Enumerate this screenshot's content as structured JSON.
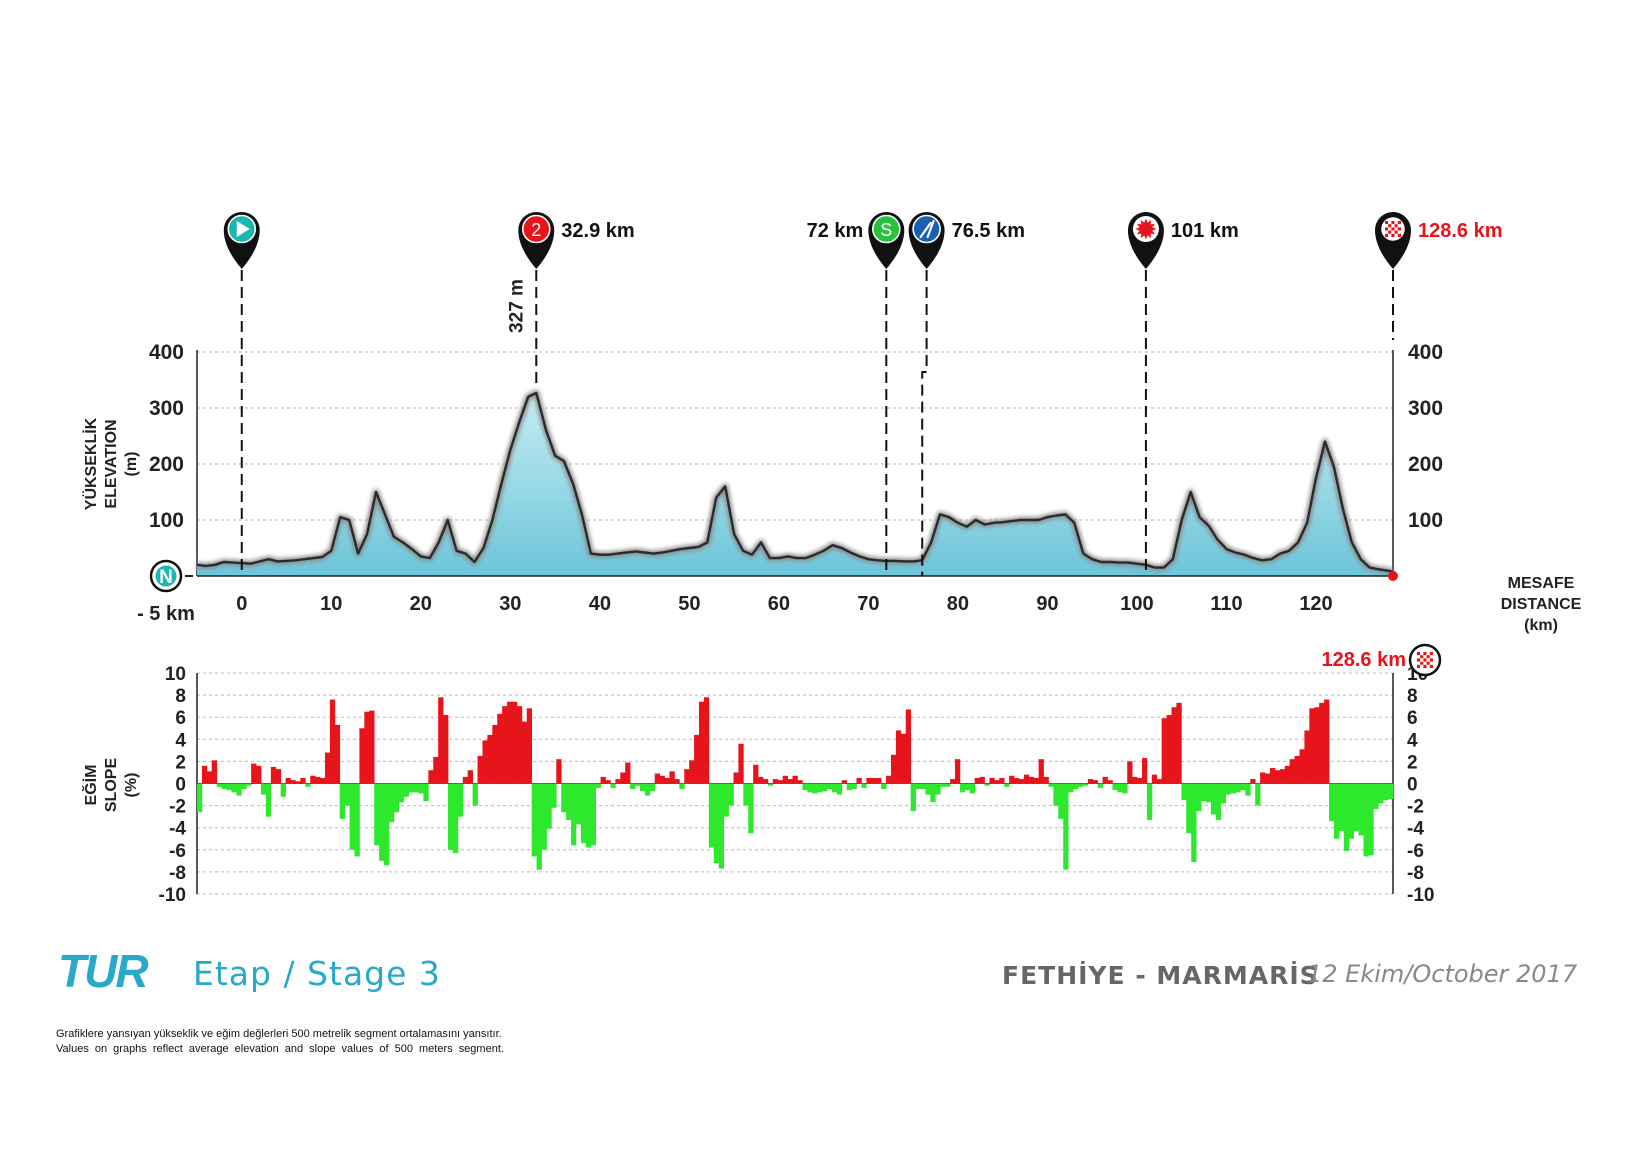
{
  "chart_data": [
    {
      "type": "area",
      "ylabel_lines": [
        "YÜKSEKLİK",
        "ELEVATION",
        "(m)"
      ],
      "xlabel_lines": [
        "MESAFE",
        "DISTANCE",
        "(km)"
      ],
      "ylim": [
        0,
        400
      ],
      "yticks": [
        100,
        200,
        300,
        400
      ],
      "xlim": [
        -5,
        128.6
      ],
      "xticks": [
        0,
        10,
        20,
        30,
        40,
        50,
        60,
        70,
        80,
        90,
        100,
        110,
        120
      ],
      "start_label": "- 5 km",
      "north_symbol": "N",
      "peak_label": "327 m",
      "grid": true,
      "series": [
        {
          "x": [
            -5,
            -4,
            -3,
            -2,
            -1,
            0,
            1,
            2,
            3,
            4,
            5,
            6,
            7,
            8,
            9,
            10,
            11,
            12,
            13,
            14,
            15,
            16,
            17,
            18,
            19,
            20,
            21,
            22,
            23,
            24,
            25,
            26,
            27,
            28,
            29,
            30,
            31,
            32,
            32.9,
            34,
            35,
            36,
            37,
            38,
            39,
            40,
            41,
            42,
            43,
            44,
            45,
            46,
            47,
            48,
            49,
            50,
            51,
            52,
            53,
            54,
            55,
            56,
            57,
            58,
            59,
            60,
            61,
            62,
            63,
            64,
            65,
            66,
            67,
            68,
            69,
            70,
            71,
            72,
            73,
            74,
            75,
            76,
            77,
            78,
            79,
            80,
            81,
            82,
            83,
            84,
            85,
            86,
            87,
            88,
            89,
            90,
            91,
            92,
            93,
            94,
            95,
            96,
            97,
            98,
            99,
            100,
            101,
            102,
            103,
            104,
            105,
            106,
            107,
            108,
            109,
            110,
            111,
            112,
            113,
            114,
            115,
            116,
            117,
            118,
            119,
            120,
            121,
            122,
            123,
            124,
            125,
            126,
            127,
            128.6
          ],
          "y": [
            20,
            18,
            20,
            25,
            24,
            23,
            22,
            26,
            30,
            26,
            27,
            28,
            30,
            32,
            34,
            45,
            105,
            100,
            40,
            75,
            150,
            110,
            70,
            60,
            48,
            35,
            32,
            60,
            100,
            45,
            40,
            25,
            50,
            100,
            165,
            225,
            275,
            320,
            327,
            260,
            215,
            205,
            165,
            110,
            40,
            38,
            38,
            40,
            42,
            44,
            42,
            40,
            42,
            45,
            48,
            50,
            52,
            60,
            140,
            160,
            75,
            45,
            38,
            60,
            32,
            32,
            35,
            32,
            32,
            38,
            45,
            55,
            50,
            42,
            35,
            30,
            28,
            27,
            27,
            26,
            26,
            28,
            60,
            110,
            105,
            95,
            88,
            100,
            92,
            95,
            96,
            98,
            100,
            100,
            100,
            105,
            108,
            110,
            95,
            40,
            30,
            25,
            25,
            24,
            24,
            22,
            20,
            15,
            15,
            30,
            100,
            150,
            105,
            90,
            65,
            48,
            42,
            38,
            32,
            28,
            30,
            40,
            45,
            60,
            95,
            175,
            240,
            195,
            120,
            60,
            30,
            15,
            12,
            8
          ]
        }
      ]
    },
    {
      "type": "bar",
      "ylabel_lines": [
        "EĞİM",
        "SLOPE",
        "(%)"
      ],
      "ylim": [
        -10,
        10
      ],
      "yticks": [
        10,
        8,
        6,
        4,
        2,
        0,
        -2,
        -4,
        -6,
        -8,
        -10
      ],
      "grid": true,
      "segment_km": 0.5,
      "x_start_km": -5,
      "values": [
        -2.6,
        1.6,
        1.1,
        2.1,
        -0.3,
        -0.5,
        -0.6,
        -0.8,
        -1.1,
        -0.5,
        -0.2,
        1.8,
        1.6,
        -1.0,
        -3.0,
        1.5,
        1.3,
        -1.2,
        0.5,
        0.3,
        0.2,
        0.5,
        -0.3,
        0.7,
        0.6,
        0.5,
        2.8,
        7.6,
        5.3,
        -3.2,
        -2.0,
        -6.0,
        -6.6,
        5.0,
        6.5,
        6.6,
        -5.6,
        -7.0,
        -7.4,
        -3.5,
        -2.6,
        -1.7,
        -1.2,
        -0.8,
        -0.8,
        -0.9,
        -1.6,
        1.2,
        2.4,
        7.8,
        6.2,
        -6.0,
        -6.3,
        -3.0,
        0.6,
        1.2,
        -2.0,
        2.5,
        3.9,
        4.4,
        5.3,
        6.3,
        7.0,
        7.4,
        7.4,
        7.0,
        5.6,
        6.8,
        -6.6,
        -7.8,
        -6.0,
        -4.1,
        -2.2,
        2.2,
        -2.6,
        -3.3,
        -5.6,
        -3.7,
        -5.4,
        -5.8,
        -5.6,
        -0.4,
        0.6,
        0.3,
        -0.4,
        0.4,
        1.0,
        1.9,
        -0.5,
        -0.2,
        -0.7,
        -1.1,
        -0.7,
        0.9,
        0.7,
        0.5,
        1.1,
        0.4,
        -0.5,
        1.3,
        2.1,
        4.4,
        7.4,
        7.8,
        -5.8,
        -7.2,
        -7.7,
        -3.0,
        -2.0,
        1.0,
        3.6,
        -2.0,
        -4.5,
        1.7,
        0.6,
        0.4,
        -0.2,
        0.4,
        0.3,
        0.7,
        0.4,
        0.7,
        0.3,
        -0.6,
        -0.8,
        -0.9,
        -0.8,
        -0.7,
        -0.5,
        -0.8,
        -1.0,
        0.3,
        -0.6,
        -0.5,
        0.5,
        -0.4,
        0.5,
        0.5,
        0.5,
        -0.5,
        0.7,
        2.6,
        4.8,
        4.5,
        6.7,
        -2.5,
        -0.5,
        -0.5,
        -1.0,
        -1.7,
        -1.0,
        -0.3,
        -0.3,
        0.4,
        2.2,
        -0.8,
        -0.6,
        -0.9,
        0.5,
        0.6,
        -0.2,
        0.5,
        0.3,
        0.5,
        -0.3,
        0.7,
        0.5,
        0.4,
        0.8,
        0.6,
        0.5,
        2.2,
        0.6,
        -0.3,
        -2.0,
        -3.2,
        -7.8,
        -0.8,
        -0.5,
        -0.3,
        -0.2,
        0.4,
        0.3,
        -0.4,
        0.6,
        0.3,
        -0.6,
        -0.8,
        -0.9,
        2.0,
        0.6,
        0.5,
        2.3,
        -3.3,
        0.8,
        0.4,
        5.9,
        6.2,
        6.9,
        7.3,
        -1.5,
        -4.5,
        -7.1,
        -2.5,
        -1.6,
        -1.7,
        -2.8,
        -3.3,
        -1.8,
        -1.0,
        -0.9,
        -0.8,
        -0.6,
        -1.1,
        0.4,
        -2.0,
        1.0,
        0.9,
        1.4,
        1.2,
        1.3,
        1.6,
        2.2,
        2.5,
        3.1,
        4.8,
        6.8,
        6.9,
        7.3,
        7.6,
        -3.4,
        -5.0,
        -4.3,
        -6.1,
        -5.0,
        -4.3,
        -4.7,
        -6.6,
        -6.5,
        -2.3,
        -1.8,
        -1.5,
        -1.4
      ],
      "label_end": "128.6 km"
    }
  ],
  "markers": [
    {
      "name": "start",
      "km": 0,
      "color": "#1ab7b0",
      "symbol": "play",
      "label": "",
      "label_color": "#111111",
      "label_side": "right"
    },
    {
      "name": "climb",
      "km": 32.9,
      "color": "#e8141b",
      "symbol": "2",
      "label": "32.9 km",
      "label_color": "#111111",
      "label_side": "right"
    },
    {
      "name": "sprint",
      "km": 72,
      "color": "#27c33d",
      "symbol": "S",
      "label": "72 km",
      "label_color": "#111111",
      "label_side": "left"
    },
    {
      "name": "feed",
      "km": 76.5,
      "color": "#1a5fb4",
      "symbol": "fork",
      "label": "76.5 km",
      "label_color": "#111111",
      "label_side": "right"
    },
    {
      "name": "bonus",
      "km": 101,
      "color": "#e8141b",
      "symbol": "star",
      "label": "101 km",
      "label_color": "#111111",
      "label_side": "right"
    },
    {
      "name": "finish",
      "km": 128.6,
      "color": "#ffffff",
      "symbol": "checker",
      "label": "128.6 km",
      "label_color": "#e8141b",
      "label_side": "right"
    }
  ],
  "footer": {
    "brand": "TUR",
    "stage_title": "Etap / Stage 3",
    "route": "FETHİYE - MARMARİS",
    "date": "12 Ekim/October 2017",
    "note_tr": "Grafiklere yansıyan yükseklik ve eğim değlerleri 500 metrelik segment ortalamasını yansıtır.",
    "note_en": "Values on graphs reflect average elevation and slope values of 500 meters segment."
  },
  "colors": {
    "uphill": "#e8141b",
    "downhill": "#2ee82e",
    "area_top": "#c7ecf3",
    "area_bottom": "#6cc5d9",
    "brand": "#29a9c9"
  }
}
